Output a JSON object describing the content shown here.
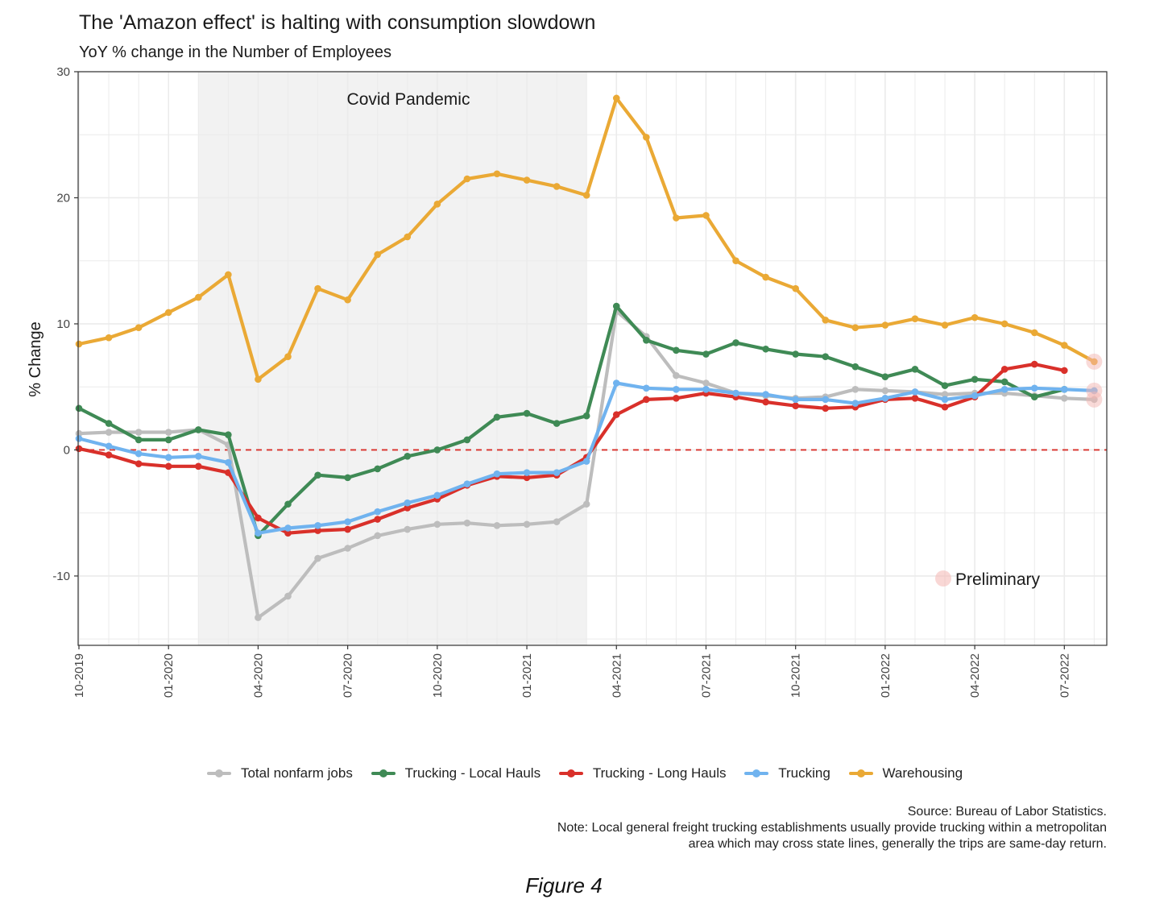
{
  "colors": {
    "total": "#bdbdbd",
    "local": "#3f8a55",
    "long": "#d9302a",
    "trucking": "#70b3ef",
    "warehousing": "#eaa935",
    "shade": "#f2f2f2",
    "grid": "#ebebeb",
    "zero_line": "#d9302a"
  },
  "chart_data": {
    "type": "line",
    "title": "The 'Amazon effect' is halting with consumption slowdown",
    "subtitle": "YoY % change in the Number of Employees",
    "ylabel": "% Change",
    "xlabel": "",
    "ylim": [
      -15.5,
      30
    ],
    "y_ticks": [
      -10,
      0,
      10,
      20,
      30
    ],
    "x_tick_labels": [
      "10-2019",
      "01-2020",
      "04-2020",
      "07-2020",
      "10-2020",
      "01-2021",
      "04-2021",
      "07-2021",
      "10-2021",
      "01-2022",
      "04-2022",
      "07-2022"
    ],
    "x_tick_index": [
      0,
      3,
      6,
      9,
      12,
      15,
      18,
      21,
      24,
      27,
      30,
      33
    ],
    "months": [
      "2019-10",
      "2019-11",
      "2019-12",
      "2020-01",
      "2020-02",
      "2020-03",
      "2020-04",
      "2020-05",
      "2020-06",
      "2020-07",
      "2020-08",
      "2020-09",
      "2020-10",
      "2020-11",
      "2020-12",
      "2021-01",
      "2021-02",
      "2021-03",
      "2021-04",
      "2021-05",
      "2021-06",
      "2021-07",
      "2021-08",
      "2021-09",
      "2021-10",
      "2021-11",
      "2021-12",
      "2022-01",
      "2022-02",
      "2022-03",
      "2022-04",
      "2022-05",
      "2022-06",
      "2022-07",
      "2022-08"
    ],
    "grid": true,
    "reference_line": {
      "y": 0,
      "style": "dashed"
    },
    "shaded_region": {
      "from": "2020-02",
      "to": "2021-03",
      "label": "Covid Pandemic"
    },
    "preliminary_label": "Preliminary",
    "series": [
      {
        "name": "Total nonfarm jobs",
        "color_key": "total",
        "values": [
          1.3,
          1.4,
          1.4,
          1.4,
          1.6,
          0.4,
          -13.3,
          -11.6,
          -8.6,
          -7.8,
          -6.8,
          -6.3,
          -5.9,
          -5.8,
          -6.0,
          -5.9,
          -5.7,
          -4.3,
          11.0,
          9.0,
          5.9,
          5.3,
          4.5,
          4.3,
          4.1,
          4.2,
          4.8,
          4.7,
          4.6,
          4.4,
          4.5,
          4.5,
          4.3,
          4.1,
          4.0
        ],
        "preliminary": 4.0
      },
      {
        "name": "Trucking - Local Hauls",
        "color_key": "local",
        "values": [
          3.3,
          2.1,
          0.8,
          0.8,
          1.6,
          1.2,
          -6.8,
          -4.3,
          -2.0,
          -2.2,
          -1.5,
          -0.5,
          0.0,
          0.8,
          2.6,
          2.9,
          2.1,
          2.7,
          11.4,
          8.7,
          7.9,
          7.6,
          8.5,
          8.0,
          7.6,
          7.4,
          6.6,
          5.8,
          6.4,
          5.1,
          5.6,
          5.4,
          4.2,
          4.8
        ],
        "preliminary": null
      },
      {
        "name": "Trucking - Long Hauls",
        "color_key": "long",
        "values": [
          0.1,
          -0.4,
          -1.1,
          -1.3,
          -1.3,
          -1.8,
          -5.4,
          -6.6,
          -6.4,
          -6.3,
          -5.5,
          -4.6,
          -3.9,
          -2.8,
          -2.1,
          -2.2,
          -2.0,
          -0.6,
          2.8,
          4.0,
          4.1,
          4.5,
          4.2,
          3.8,
          3.5,
          3.3,
          3.4,
          4.0,
          4.1,
          3.4,
          4.2,
          6.4,
          6.8,
          6.3
        ],
        "preliminary": null
      },
      {
        "name": "Trucking",
        "color_key": "trucking",
        "values": [
          0.9,
          0.3,
          -0.3,
          -0.6,
          -0.5,
          -1.0,
          -6.6,
          -6.2,
          -6.0,
          -5.7,
          -4.9,
          -4.2,
          -3.6,
          -2.7,
          -1.9,
          -1.8,
          -1.8,
          -0.9,
          5.3,
          4.9,
          4.8,
          4.8,
          4.5,
          4.4,
          4.0,
          4.0,
          3.7,
          4.1,
          4.6,
          4.0,
          4.3,
          4.8,
          4.9,
          4.8,
          4.7
        ],
        "preliminary": 4.7
      },
      {
        "name": "Warehousing",
        "color_key": "warehousing",
        "values": [
          8.4,
          8.9,
          9.7,
          10.9,
          12.1,
          13.9,
          5.6,
          7.4,
          12.8,
          11.9,
          15.5,
          16.9,
          19.5,
          21.5,
          21.9,
          21.4,
          20.9,
          20.2,
          27.9,
          24.8,
          18.4,
          18.6,
          15.0,
          13.7,
          12.8,
          10.3,
          9.7,
          9.9,
          10.4,
          9.9,
          10.5,
          10.0,
          9.3,
          8.3,
          7.0
        ],
        "preliminary": 7.0
      }
    ]
  },
  "source_text": "Source: Bureau of Labor Statistics.",
  "note_line1": "Note: Local general freight trucking establishments usually provide trucking within a metropolitan",
  "note_line2": "area which may cross state lines, generally the trips are same-day return.",
  "figure_caption": "Figure 4"
}
